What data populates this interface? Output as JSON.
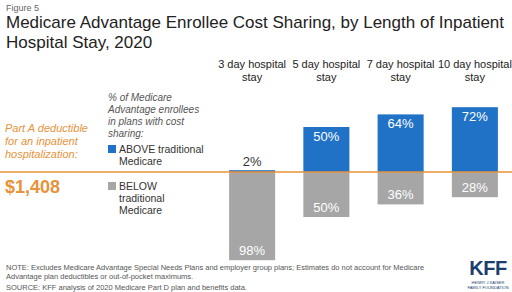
{
  "chart_data": {
    "type": "bar",
    "figure": "Figure 5",
    "title": "Medicare Advantage Enrollee Cost Sharing, by Length of Inpatient Hospital Stay, 2020",
    "legend_title": "% of Medicare Advantage enrollees in plans with cost sharing:",
    "annotations": [
      "Part A deductible for an inpatient hospitalization:",
      "$1,408"
    ],
    "notes": [
      "NOTE: Excludes Medicare Advantage Special Needs Plans and employer group plans; Estimates do not account for Medicare Advantage plan deductibles or out-of-pocket maximums.",
      "SOURCE: KFF analysis of 2020 Medicare Part D plan and benefits data."
    ],
    "logo": [
      "KFF",
      "HENRY J KAISER FAMILY FOUNDATION"
    ],
    "categories": [
      "3 day hospital stay",
      "5 day hospital stay",
      "7 day hospital stay",
      "10 day hospital stay"
    ],
    "series": [
      {
        "name": "ABOVE traditional Medicare",
        "color": "#1f72c6",
        "values": [
          2,
          50,
          64,
          72
        ],
        "value_labels": [
          "2%",
          "50%",
          "64%",
          "72%"
        ]
      },
      {
        "name": "BELOW traditional Medicare",
        "color": "#a6a6a6",
        "values": [
          98,
          50,
          36,
          28
        ],
        "value_labels": [
          "98%",
          "50%",
          "36%",
          "28%"
        ]
      }
    ],
    "ylim": [
      0,
      100
    ],
    "grid": false,
    "legend": "left",
    "data_labels": true,
    "tick_labels": false
  }
}
